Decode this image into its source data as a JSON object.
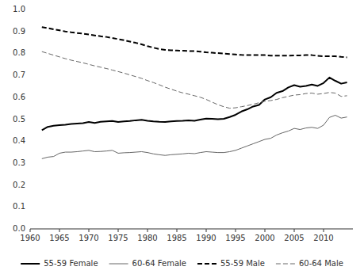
{
  "chart_data": {
    "type": "line",
    "x": [
      1962,
      1963,
      1964,
      1965,
      1966,
      1967,
      1968,
      1969,
      1970,
      1971,
      1972,
      1973,
      1974,
      1975,
      1976,
      1977,
      1978,
      1979,
      1980,
      1981,
      1982,
      1983,
      1984,
      1985,
      1986,
      1987,
      1988,
      1989,
      1990,
      1991,
      1992,
      1993,
      1994,
      1995,
      1996,
      1997,
      1998,
      1999,
      2000,
      2001,
      2002,
      2003,
      2004,
      2005,
      2006,
      2007,
      2008,
      2009,
      2010,
      2011,
      2012,
      2013,
      2014
    ],
    "series": [
      {
        "name": "55-59 Female",
        "color": "#000000",
        "line_style": "solid",
        "values": [
          0.45,
          0.465,
          0.47,
          0.473,
          0.475,
          0.478,
          0.48,
          0.482,
          0.487,
          0.483,
          0.488,
          0.49,
          0.492,
          0.487,
          0.49,
          0.492,
          0.495,
          0.497,
          0.493,
          0.49,
          0.488,
          0.487,
          0.49,
          0.492,
          0.493,
          0.495,
          0.493,
          0.498,
          0.503,
          0.502,
          0.5,
          0.502,
          0.51,
          0.52,
          0.535,
          0.545,
          0.558,
          0.565,
          0.59,
          0.6,
          0.62,
          0.628,
          0.645,
          0.655,
          0.648,
          0.652,
          0.658,
          0.652,
          0.665,
          0.69,
          0.675,
          0.662,
          0.668
        ]
      },
      {
        "name": "60-64 Female",
        "color": "#666666",
        "line_style": "solid",
        "values": [
          0.32,
          0.327,
          0.33,
          0.345,
          0.35,
          0.35,
          0.352,
          0.355,
          0.358,
          0.352,
          0.353,
          0.355,
          0.358,
          0.345,
          0.347,
          0.348,
          0.35,
          0.352,
          0.348,
          0.342,
          0.338,
          0.335,
          0.338,
          0.34,
          0.342,
          0.345,
          0.343,
          0.348,
          0.352,
          0.35,
          0.348,
          0.348,
          0.352,
          0.358,
          0.368,
          0.378,
          0.388,
          0.398,
          0.408,
          0.413,
          0.428,
          0.438,
          0.446,
          0.458,
          0.453,
          0.46,
          0.463,
          0.458,
          0.473,
          0.508,
          0.518,
          0.505,
          0.51
        ]
      },
      {
        "name": "55-59 Male",
        "color": "#000000",
        "line_style": "dashed",
        "values": [
          0.92,
          0.915,
          0.91,
          0.905,
          0.9,
          0.896,
          0.893,
          0.89,
          0.886,
          0.882,
          0.878,
          0.875,
          0.87,
          0.865,
          0.86,
          0.854,
          0.848,
          0.841,
          0.833,
          0.826,
          0.82,
          0.816,
          0.814,
          0.813,
          0.812,
          0.811,
          0.81,
          0.808,
          0.805,
          0.803,
          0.801,
          0.799,
          0.797,
          0.795,
          0.793,
          0.792,
          0.792,
          0.792,
          0.792,
          0.79,
          0.79,
          0.79,
          0.79,
          0.791,
          0.791,
          0.792,
          0.792,
          0.789,
          0.787,
          0.787,
          0.787,
          0.784,
          0.782
        ]
      },
      {
        "name": "60-64 Male",
        "color": "#666666",
        "line_style": "dashed",
        "values": [
          0.808,
          0.8,
          0.792,
          0.784,
          0.776,
          0.769,
          0.763,
          0.757,
          0.75,
          0.743,
          0.737,
          0.731,
          0.724,
          0.717,
          0.71,
          0.702,
          0.694,
          0.686,
          0.676,
          0.667,
          0.657,
          0.646,
          0.637,
          0.628,
          0.62,
          0.614,
          0.607,
          0.6,
          0.59,
          0.578,
          0.566,
          0.557,
          0.55,
          0.552,
          0.557,
          0.562,
          0.568,
          0.575,
          0.582,
          0.585,
          0.59,
          0.598,
          0.604,
          0.61,
          0.612,
          0.617,
          0.619,
          0.614,
          0.617,
          0.622,
          0.619,
          0.604,
          0.607
        ]
      }
    ],
    "xlim": [
      1960,
      2015
    ],
    "ylim": [
      0.0,
      1.0
    ],
    "xticks": [
      1960,
      1965,
      1970,
      1975,
      1980,
      1985,
      1990,
      1995,
      2000,
      2005,
      2010
    ],
    "yticks": [
      {
        "value": 0.0,
        "label": "0.0"
      },
      0.1,
      0.2,
      0.3,
      0.4,
      0.5,
      0.6,
      0.7,
      0.8,
      0.9,
      {
        "value": 1.0,
        "label": "1.0"
      }
    ],
    "grid": false,
    "legend": "bottom"
  }
}
